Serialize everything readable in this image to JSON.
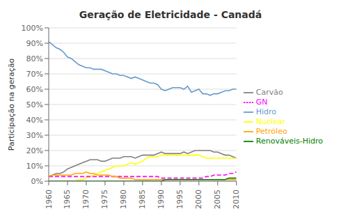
{
  "chart_data": {
    "type": "line",
    "title": "Geração de Eletricidade - Canadá",
    "y_label": "Participação na geração",
    "x": [
      1960,
      1961,
      1962,
      1963,
      1964,
      1965,
      1966,
      1967,
      1968,
      1969,
      1970,
      1971,
      1972,
      1973,
      1974,
      1975,
      1976,
      1977,
      1978,
      1979,
      1980,
      1981,
      1982,
      1983,
      1984,
      1985,
      1986,
      1987,
      1988,
      1989,
      1990,
      1991,
      1992,
      1993,
      1994,
      1995,
      1996,
      1997,
      1998,
      1999,
      2000,
      2001,
      2002,
      2003,
      2004,
      2005,
      2006,
      2007,
      2008,
      2009,
      2010
    ],
    "series": [
      {
        "name": "Hidro",
        "color": "#6699CC",
        "line_style": "solid",
        "values": [
          91,
          89,
          87,
          86,
          84,
          81,
          80,
          78,
          76,
          75,
          74,
          74,
          73,
          73,
          73,
          72,
          71,
          70,
          70,
          69,
          69,
          68,
          67,
          68,
          67,
          66,
          65,
          64,
          64,
          63,
          60,
          59,
          60,
          61,
          61,
          61,
          60,
          62,
          58,
          59,
          60,
          57,
          57,
          56,
          57,
          57,
          58,
          59,
          59,
          60,
          60
        ]
      },
      {
        "name": "Carvão",
        "color": "#808080",
        "line_style": "solid",
        "values": [
          3,
          4,
          5,
          5,
          6,
          8,
          9,
          10,
          11,
          12,
          13,
          14,
          14,
          14,
          13,
          13,
          14,
          15,
          15,
          15,
          16,
          16,
          16,
          15,
          16,
          17,
          17,
          17,
          17,
          18,
          19,
          18,
          18,
          18,
          18,
          18,
          19,
          18,
          19,
          20,
          20,
          20,
          20,
          20,
          19,
          19,
          18,
          17,
          17,
          16,
          15
        ]
      },
      {
        "name": "Nuclear",
        "color": "#FFFF00",
        "line_style": "solid",
        "values": [
          0,
          0,
          0,
          0,
          0,
          0,
          0,
          0,
          1,
          1,
          2,
          3,
          4,
          5,
          6,
          7,
          8,
          9,
          10,
          10,
          10,
          11,
          12,
          11,
          12,
          13,
          15,
          16,
          16,
          16,
          17,
          17,
          17,
          17,
          17,
          17,
          17,
          17,
          17,
          17,
          17,
          16,
          15,
          15,
          15,
          15,
          15,
          15,
          15,
          15,
          15
        ]
      },
      {
        "name": "GN",
        "color": "#FF00FF",
        "line_style": "dashed",
        "values": [
          3,
          3,
          3,
          3,
          3,
          3,
          3,
          3,
          3,
          3,
          3,
          3,
          3,
          3,
          3,
          3,
          3,
          3,
          3,
          3,
          3,
          3,
          3,
          3,
          3,
          3,
          3,
          3,
          3,
          3,
          2,
          2,
          2,
          2,
          2,
          2,
          2,
          2,
          2,
          2,
          2,
          2,
          3,
          3,
          4,
          4,
          4,
          4,
          5,
          5,
          6
        ]
      },
      {
        "name": "Petróleo",
        "color": "#FFA500",
        "line_style": "solid",
        "values": [
          3,
          4,
          4,
          4,
          4,
          4,
          4,
          5,
          5,
          5,
          6,
          5,
          5,
          4,
          4,
          4,
          4,
          3,
          3,
          2,
          2,
          2,
          2,
          1,
          1,
          1,
          1,
          1,
          1,
          1,
          1,
          1,
          1,
          1,
          1,
          1,
          1,
          1,
          1,
          1,
          1,
          1,
          1,
          1,
          1,
          1,
          1,
          1,
          1,
          1,
          1
        ]
      },
      {
        "name": "Renováveis-Hidro",
        "color": "#008000",
        "line_style": "solid",
        "values": [
          0,
          0,
          0,
          0,
          0,
          0,
          0,
          0,
          0,
          0,
          0,
          0,
          0,
          0,
          0,
          0,
          0,
          0,
          0,
          0,
          0,
          0,
          0,
          0,
          0,
          0,
          0,
          0,
          0,
          0,
          0,
          1,
          1,
          1,
          1,
          1,
          1,
          1,
          1,
          1,
          1,
          1,
          1,
          1,
          1,
          1,
          1,
          1,
          2,
          2,
          2
        ]
      }
    ],
    "xlim": [
      1960,
      2010
    ],
    "xticks": [
      1960,
      1965,
      1970,
      1975,
      1980,
      1985,
      1990,
      1995,
      2000,
      2005,
      2010
    ],
    "ylim": [
      0,
      100
    ],
    "yticks": [
      {
        "value": 0,
        "label": "0%"
      },
      {
        "value": 10,
        "label": "10%"
      },
      {
        "value": 20,
        "label": "20%"
      },
      {
        "value": 30,
        "label": "30%"
      },
      {
        "value": 40,
        "label": "40%"
      },
      {
        "value": 50,
        "label": "50%"
      },
      {
        "value": 60,
        "label": "60%"
      },
      {
        "value": 70,
        "label": "70%"
      },
      {
        "value": 80,
        "label": "80%"
      },
      {
        "value": 90,
        "label": "90%"
      },
      {
        "value": 100,
        "label": "100%"
      }
    ],
    "grid": true,
    "legend": "right"
  }
}
